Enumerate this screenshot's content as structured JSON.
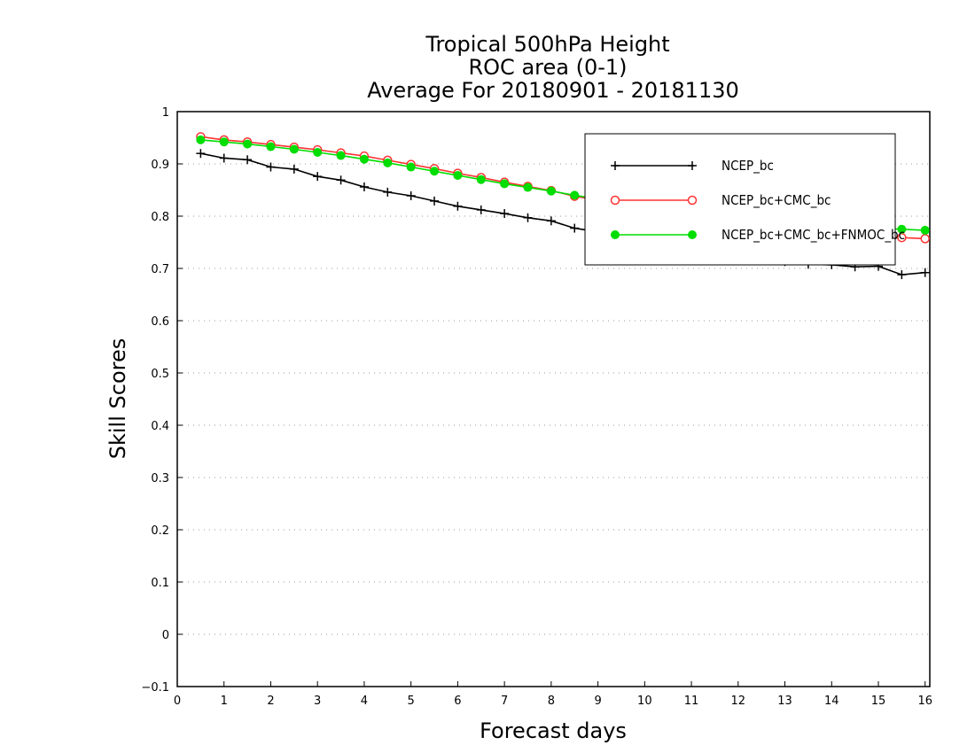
{
  "chart_data": {
    "type": "line",
    "title_lines": [
      "Tropical 500hPa Height",
      "ROC area (0-1)",
      "Average For 20180901 - 20181130"
    ],
    "xlabel": "Forecast days",
    "ylabel": "Skill Scores",
    "xlim": [
      0,
      16.1
    ],
    "ylim": [
      -0.1,
      1
    ],
    "x_ticks": [
      "0",
      "1",
      "2",
      "3",
      "4",
      "5",
      "6",
      "7",
      "8",
      "9",
      "10",
      "11",
      "12",
      "13",
      "14",
      "15",
      "16"
    ],
    "y_ticks": [
      "−0.1",
      "0",
      "0.1",
      "0.2",
      "0.3",
      "0.4",
      "0.5",
      "0.6",
      "0.7",
      "0.8",
      "0.9",
      "1"
    ],
    "grid": "horizontal dotted",
    "legend_position": "top-right",
    "x": [
      0.5,
      1.0,
      1.5,
      2.0,
      2.5,
      3.0,
      3.5,
      4.0,
      4.5,
      5.0,
      5.5,
      6.0,
      6.5,
      7.0,
      7.5,
      8.0,
      8.5,
      9.0,
      9.5,
      10.0,
      10.5,
      11.0,
      11.5,
      12.0,
      12.5,
      13.0,
      13.5,
      14.0,
      14.5,
      15.0,
      15.5,
      16.0
    ],
    "series": [
      {
        "name": "NCEP_bc",
        "color": "#000000",
        "marker": "plus",
        "values": [
          0.92,
          0.911,
          0.908,
          0.894,
          0.89,
          0.876,
          0.869,
          0.856,
          0.846,
          0.839,
          0.829,
          0.819,
          0.812,
          0.805,
          0.797,
          0.791,
          0.777,
          0.77,
          0.762,
          0.755,
          0.747,
          0.74,
          0.733,
          0.726,
          0.719,
          0.713,
          0.708,
          0.707,
          0.703,
          0.704,
          0.688,
          0.692
        ]
      },
      {
        "name": "NCEP_bc+CMC_bc",
        "color": "#ff3333",
        "marker": "open-circle",
        "values": [
          0.952,
          0.946,
          0.942,
          0.937,
          0.932,
          0.927,
          0.921,
          0.915,
          0.907,
          0.899,
          0.891,
          0.882,
          0.874,
          0.865,
          0.857,
          0.849,
          0.838,
          0.831,
          0.822,
          0.814,
          0.806,
          0.798,
          0.791,
          0.785,
          0.779,
          0.774,
          0.77,
          0.766,
          0.763,
          0.761,
          0.759,
          0.757
        ]
      },
      {
        "name": "NCEP_bc+CMC_bc+FNMOC_bc",
        "color": "#00dd00",
        "marker": "filled-circle",
        "values": [
          0.946,
          0.942,
          0.938,
          0.933,
          0.928,
          0.922,
          0.916,
          0.909,
          0.902,
          0.894,
          0.886,
          0.878,
          0.87,
          0.862,
          0.855,
          0.848,
          0.84,
          0.833,
          0.826,
          0.819,
          0.812,
          0.805,
          0.799,
          0.794,
          0.789,
          0.785,
          0.782,
          0.78,
          0.778,
          0.777,
          0.775,
          0.773
        ]
      }
    ]
  }
}
